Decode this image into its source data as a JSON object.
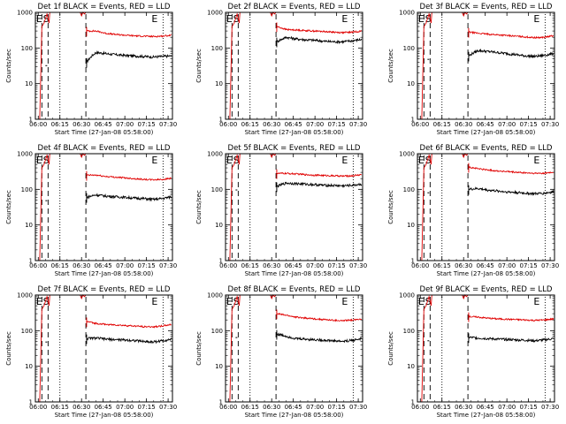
{
  "chart_data": [
    {
      "type": "line",
      "title": "Det 1f BLACK = Events, RED = LLD",
      "xlabel": "Start Time (27-Jan-08 05:58:00)",
      "ylabel": "Counts/sec",
      "y_scale": "log",
      "ylim": [
        1,
        1000
      ],
      "xlim": [
        0,
        95
      ],
      "yticks": [
        "1",
        "10",
        "100",
        "1000"
      ],
      "xticks": [
        "06:00",
        "06:15",
        "06:30",
        "06:45",
        "07:00",
        "07:15",
        "07:30"
      ],
      "markers": [
        "E",
        "S",
        "E"
      ],
      "series": [
        {
          "name": "Events",
          "color": "#000000",
          "values": [
            40,
            75,
            70,
            65,
            62,
            60,
            58,
            56,
            58,
            60
          ]
        },
        {
          "name": "LLD",
          "color": "#e00000",
          "values": [
            300,
            300,
            260,
            240,
            230,
            220,
            215,
            210,
            215,
            230
          ]
        }
      ]
    },
    {
      "type": "line",
      "title": "Det 2f BLACK = Events, RED = LLD",
      "xlabel": "Start Time (27-Jan-08 05:58:00)",
      "ylabel": "Counts/sec",
      "y_scale": "log",
      "ylim": [
        1,
        1000
      ],
      "xlim": [
        0,
        95
      ],
      "yticks": [
        "1",
        "10",
        "100",
        "1000"
      ],
      "xticks": [
        "06:00",
        "06:15",
        "06:30",
        "06:45",
        "07:00",
        "07:15",
        "07:30"
      ],
      "markers": [
        "E",
        "S",
        "E"
      ],
      "series": [
        {
          "name": "Events",
          "color": "#000000",
          "values": [
            150,
            200,
            180,
            170,
            165,
            155,
            150,
            150,
            160,
            175
          ]
        },
        {
          "name": "LLD",
          "color": "#e00000",
          "values": [
            400,
            330,
            320,
            310,
            300,
            290,
            280,
            270,
            280,
            300
          ]
        }
      ]
    },
    {
      "type": "line",
      "title": "Det 3f BLACK = Events, RED = LLD",
      "xlabel": "Start Time (27-Jan-08 05:58:00)",
      "ylabel": "Counts/sec",
      "y_scale": "log",
      "ylim": [
        1,
        1000
      ],
      "xlim": [
        0,
        95
      ],
      "yticks": [
        "1",
        "10",
        "100",
        "1000"
      ],
      "xticks": [
        "06:00",
        "06:15",
        "06:30",
        "06:45",
        "07:00",
        "07:15",
        "07:30"
      ],
      "markers": [
        "E",
        "S",
        "E"
      ],
      "series": [
        {
          "name": "Events",
          "color": "#000000",
          "values": [
            60,
            85,
            80,
            75,
            70,
            65,
            60,
            58,
            62,
            70
          ]
        },
        {
          "name": "LLD",
          "color": "#e00000",
          "values": [
            280,
            260,
            245,
            235,
            225,
            215,
            205,
            195,
            200,
            220
          ]
        }
      ]
    },
    {
      "type": "line",
      "title": "Det 4f BLACK = Events, RED = LLD",
      "xlabel": "Start Time (27-Jan-08 05:58:00)",
      "ylabel": "Counts/sec",
      "y_scale": "log",
      "ylim": [
        1,
        1000
      ],
      "xlim": [
        0,
        95
      ],
      "yticks": [
        "1",
        "10",
        "100",
        "1000"
      ],
      "xticks": [
        "06:00",
        "06:15",
        "06:30",
        "06:45",
        "07:00",
        "07:15",
        "07:30"
      ],
      "markers": [
        "E",
        "S",
        "E"
      ],
      "series": [
        {
          "name": "Events",
          "color": "#000000",
          "values": [
            60,
            70,
            65,
            62,
            60,
            57,
            55,
            52,
            55,
            62
          ]
        },
        {
          "name": "LLD",
          "color": "#e00000",
          "values": [
            250,
            250,
            230,
            220,
            210,
            200,
            190,
            185,
            190,
            205
          ]
        }
      ]
    },
    {
      "type": "line",
      "title": "Det 5f BLACK = Events, RED = LLD",
      "xlabel": "Start Time (27-Jan-08 05:58:00)",
      "ylabel": "Counts/sec",
      "y_scale": "log",
      "ylim": [
        1,
        1000
      ],
      "xlim": [
        0,
        95
      ],
      "yticks": [
        "1",
        "10",
        "100",
        "1000"
      ],
      "xticks": [
        "06:00",
        "06:15",
        "06:30",
        "06:45",
        "07:00",
        "07:15",
        "07:30"
      ],
      "markers": [
        "E",
        "S",
        "E"
      ],
      "series": [
        {
          "name": "Events",
          "color": "#000000",
          "values": [
            120,
            150,
            145,
            140,
            135,
            130,
            128,
            125,
            130,
            140
          ]
        },
        {
          "name": "LLD",
          "color": "#e00000",
          "values": [
            280,
            280,
            270,
            260,
            250,
            245,
            240,
            235,
            240,
            260
          ]
        }
      ]
    },
    {
      "type": "line",
      "title": "Det 6f BLACK = Events, RED = LLD",
      "xlabel": "Start Time (27-Jan-08 05:58:00)",
      "ylabel": "Counts/sec",
      "y_scale": "log",
      "ylim": [
        1,
        1000
      ],
      "xlim": [
        0,
        95
      ],
      "yticks": [
        "1",
        "10",
        "100",
        "1000"
      ],
      "xticks": [
        "06:00",
        "06:15",
        "06:30",
        "06:45",
        "07:00",
        "07:15",
        "07:30"
      ],
      "markers": [
        "E",
        "S",
        "E"
      ],
      "series": [
        {
          "name": "Events",
          "color": "#000000",
          "values": [
            100,
            105,
            95,
            90,
            85,
            82,
            78,
            75,
            78,
            85
          ]
        },
        {
          "name": "LLD",
          "color": "#e00000",
          "values": [
            420,
            380,
            350,
            330,
            315,
            300,
            290,
            280,
            285,
            300
          ]
        }
      ]
    },
    {
      "type": "line",
      "title": "Det 7f BLACK = Events, RED = LLD",
      "xlabel": "Start Time (27-Jan-08 05:58:00)",
      "ylabel": "Counts/sec",
      "y_scale": "log",
      "ylim": [
        1,
        1000
      ],
      "xlim": [
        0,
        95
      ],
      "yticks": [
        "1",
        "10",
        "100",
        "1000"
      ],
      "xticks": [
        "06:00",
        "06:15",
        "06:30",
        "06:45",
        "07:00",
        "07:15",
        "07:30"
      ],
      "markers": [
        "E",
        "S",
        "E"
      ],
      "series": [
        {
          "name": "Events",
          "color": "#000000",
          "values": [
            60,
            62,
            58,
            56,
            55,
            53,
            50,
            48,
            52,
            58
          ]
        },
        {
          "name": "LLD",
          "color": "#e00000",
          "values": [
            180,
            160,
            150,
            145,
            140,
            135,
            130,
            128,
            135,
            150
          ]
        }
      ]
    },
    {
      "type": "line",
      "title": "Det 8f BLACK = Events, RED = LLD",
      "xlabel": "Start Time (27-Jan-08 05:58:00)",
      "ylabel": "Counts/sec",
      "y_scale": "log",
      "ylim": [
        1,
        1000
      ],
      "xlim": [
        0,
        95
      ],
      "yticks": [
        "1",
        "10",
        "100",
        "1000"
      ],
      "xticks": [
        "06:00",
        "06:15",
        "06:30",
        "06:45",
        "07:00",
        "07:15",
        "07:30"
      ],
      "markers": [
        "E",
        "S",
        "E"
      ],
      "series": [
        {
          "name": "Events",
          "color": "#000000",
          "values": [
            80,
            70,
            60,
            58,
            56,
            54,
            52,
            50,
            54,
            60
          ]
        },
        {
          "name": "LLD",
          "color": "#e00000",
          "values": [
            300,
            270,
            240,
            225,
            215,
            205,
            195,
            190,
            200,
            215
          ]
        }
      ]
    },
    {
      "type": "line",
      "title": "Det 9f BLACK = Events, RED = LLD",
      "xlabel": "Start Time (27-Jan-08 05:58:00)",
      "ylabel": "Counts/sec",
      "y_scale": "log",
      "ylim": [
        1,
        1000
      ],
      "xlim": [
        0,
        95
      ],
      "yticks": [
        "1",
        "10",
        "100",
        "1000"
      ],
      "xticks": [
        "06:00",
        "06:15",
        "06:30",
        "06:45",
        "07:00",
        "07:15",
        "07:30"
      ],
      "markers": [
        "E",
        "S",
        "E"
      ],
      "series": [
        {
          "name": "Events",
          "color": "#000000",
          "values": [
            65,
            62,
            60,
            58,
            57,
            55,
            54,
            52,
            55,
            60
          ]
        },
        {
          "name": "LLD",
          "color": "#e00000",
          "values": [
            250,
            240,
            225,
            215,
            210,
            205,
            200,
            195,
            200,
            215
          ]
        }
      ]
    }
  ]
}
